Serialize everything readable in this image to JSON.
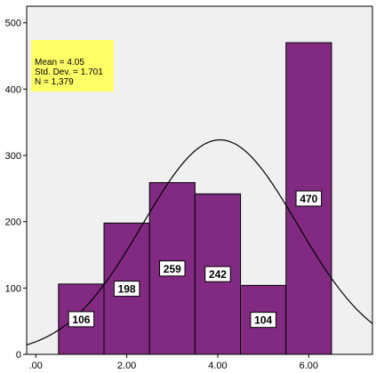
{
  "chart_data": {
    "type": "bar",
    "subtype": "histogram",
    "bins": [
      {
        "x0": 0.5,
        "x1": 1.5,
        "value": 106
      },
      {
        "x0": 1.5,
        "x1": 2.5,
        "value": 198
      },
      {
        "x0": 2.5,
        "x1": 3.5,
        "value": 259
      },
      {
        "x0": 3.5,
        "x1": 4.5,
        "value": 242
      },
      {
        "x0": 4.5,
        "x1": 5.5,
        "value": 104
      },
      {
        "x0": 5.5,
        "x1": 6.5,
        "value": 470
      }
    ],
    "x_ticks": [
      0,
      2,
      4,
      6
    ],
    "x_tick_labels": [
      ".00",
      "2.00",
      "4.00",
      "6.00"
    ],
    "y_ticks": [
      0,
      100,
      200,
      300,
      400,
      500
    ],
    "y_tick_labels": [
      "0",
      "100",
      "200",
      "300",
      "400",
      "500"
    ],
    "xlim": [
      -0.2,
      7.4
    ],
    "ylim": [
      0,
      525
    ],
    "normal_curve": {
      "mean": 4.05,
      "std": 1.701,
      "n": 1379,
      "bin_width": 1
    },
    "stats": {
      "mean_text": "Mean = 4.05",
      "std_text": "Std. Dev. = 1.701",
      "n_text": "N = 1,379"
    },
    "stats_box_placement": "top-left",
    "grid": false,
    "colors": {
      "bar_fill": "#822a82",
      "bar_stroke": "#000000",
      "plot_background": "#f0f0f0",
      "stats_box": "#ffff66",
      "curve": "#000000"
    }
  }
}
